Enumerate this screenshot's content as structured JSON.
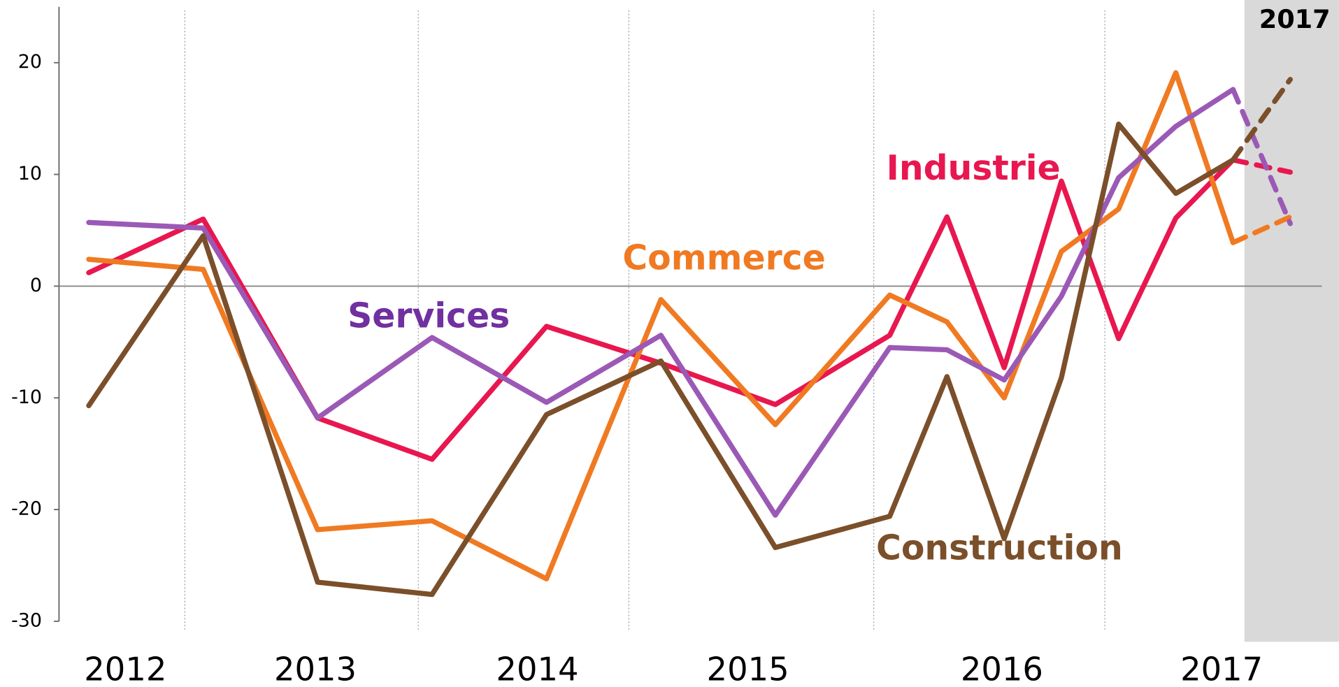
{
  "chart_data": {
    "type": "line",
    "x": [
      2012.25,
      2012.75,
      2013.25,
      2013.75,
      2014.25,
      2014.75,
      2015.25,
      2015.75,
      2016.0,
      2016.25,
      2016.5,
      2016.75,
      2017.0,
      2017.25,
      2017.5
    ],
    "series": [
      {
        "name": "Industrie",
        "color": "#e8174f",
        "values": [
          1.2,
          6,
          -11.8,
          -15.5,
          -3.6,
          -6.9,
          -10.6,
          -4.4,
          6.2,
          -7.3,
          9.4,
          -4.7,
          6.1,
          11.3,
          10.2
        ]
      },
      {
        "name": "Commerce",
        "color": "#f07a22",
        "values": [
          2.4,
          1.5,
          -21.8,
          -21.0,
          -26.2,
          -1.2,
          -12.4,
          -0.8,
          -3.2,
          -10.0,
          3.1,
          6.9,
          19.1,
          3.9,
          6.2
        ]
      },
      {
        "name": "Services",
        "color": "#9b59b6",
        "values": [
          5.7,
          5.2,
          -11.8,
          -4.6,
          -10.4,
          -4.4,
          -20.5,
          -5.5,
          -5.7,
          -8.4,
          -0.9,
          9.7,
          14.3,
          17.6,
          5.6
        ]
      },
      {
        "name": "Construction",
        "color": "#7b4f2a",
        "values": [
          -10.7,
          4.5,
          -26.5,
          -27.6,
          -11.5,
          -6.7,
          -23.4,
          -20.6,
          -8.1,
          -22.6,
          -8.2,
          14.5,
          8.3,
          11.3,
          18.5
        ]
      }
    ],
    "forecast_from_index": 13,
    "forecast_region": {
      "start": 2017.3,
      "label": "2017"
    },
    "xlim": [
      2012.12,
      2017.72
    ],
    "xticks": [
      {
        "value": 2012.41,
        "label": "2012"
      },
      {
        "value": 2013.24,
        "label": "2013"
      },
      {
        "value": 2014.21,
        "label": "2014"
      },
      {
        "value": 2015.13,
        "label": "2015"
      },
      {
        "value": 2016.24,
        "label": "2016"
      },
      {
        "value": 2017.2,
        "label": "2017"
      }
    ],
    "year_separators": [
      2012.67,
      2013.69,
      2014.61,
      2015.68,
      2016.69
    ],
    "ylim": [
      -30,
      25
    ],
    "yticks": [
      -30,
      -20,
      -10,
      0,
      10,
      20
    ]
  }
}
